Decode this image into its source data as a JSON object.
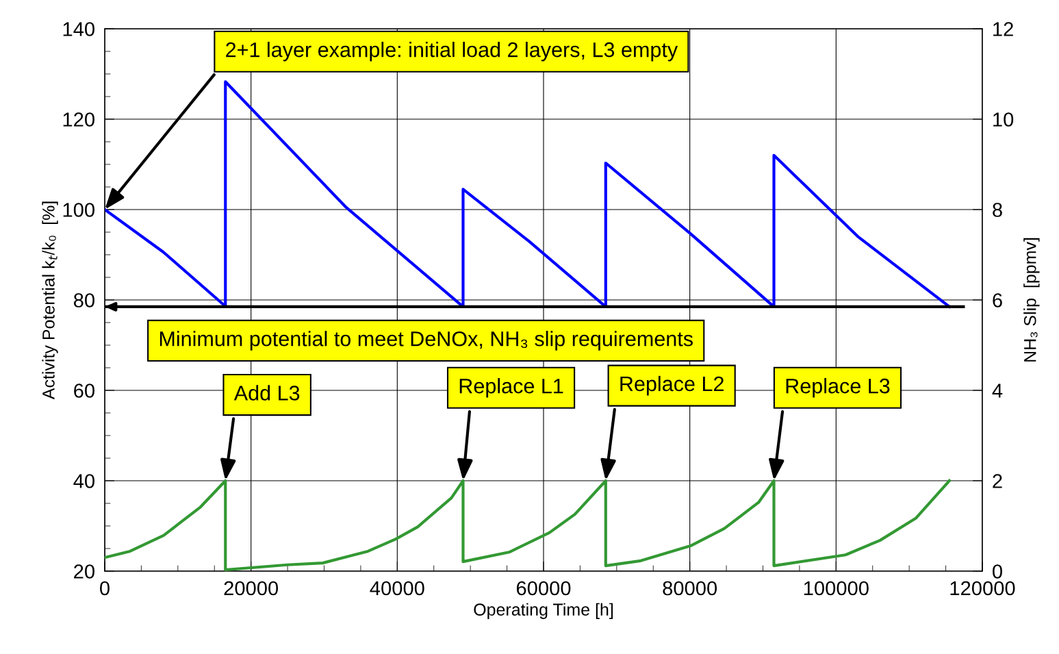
{
  "chart_data": {
    "type": "line",
    "xlabel": "Operating Time [h]",
    "ylabel": "Activity Potential k$_{t}$/k₀  [%]",
    "y2label": "NH₃ Slip  [ppmv]",
    "series": [
      {
        "color": "#0000ff",
        "x": [
          0,
          8000,
          16500,
          16500,
          33000,
          49000,
          49000,
          58000,
          68500,
          68500,
          80000,
          91500,
          91500,
          103000,
          115500
        ],
        "values": [
          100,
          90.6,
          78.6,
          128.3,
          100.5,
          78.5,
          104.5,
          93,
          78.5,
          110.3,
          94.8,
          78.5,
          112,
          94,
          78.5
        ]
      },
      {
        "color": "#339933",
        "axis": "y2",
        "x": [
          0,
          3460,
          8050,
          13100,
          16500,
          16500,
          25000,
          29800,
          36000,
          39800,
          42800,
          47400,
          49000,
          49000,
          55300,
          60800,
          64300,
          68500,
          68500,
          73300,
          80100,
          84700,
          89400,
          91500,
          91500,
          101300,
          106000,
          110900,
          115500
        ],
        "values": [
          0.3,
          0.44,
          0.79,
          1.42,
          2.0,
          0.03,
          0.14,
          0.18,
          0.44,
          0.71,
          0.98,
          1.62,
          2.0,
          0.21,
          0.42,
          0.85,
          1.26,
          2.0,
          0.12,
          0.23,
          0.56,
          0.94,
          1.52,
          2.0,
          0.12,
          0.36,
          0.68,
          1.17,
          2.0
        ]
      }
    ],
    "xlim": [
      0,
      120000
    ],
    "xticks": [
      0,
      20000,
      40000,
      60000,
      80000,
      100000,
      120000
    ],
    "ylim": [
      20,
      140
    ],
    "yticks": [
      20,
      40,
      60,
      80,
      100,
      120,
      140
    ],
    "y2lim": [
      0,
      12
    ],
    "y2ticks": [
      0,
      2,
      4,
      6,
      8,
      10,
      12
    ],
    "grid": true,
    "marker": "none",
    "line_style": "solid",
    "legend": false,
    "ref_lines": [
      {
        "axis": "y",
        "value": 78.5,
        "label": "Minimum potential to meet DeNOx, NH₃ slip requirements",
        "color": "#000000"
      }
    ],
    "annotations": [
      {
        "text": "2+1 layer example: initial load 2 layers, L3 empty",
        "x": 0,
        "y": 100
      },
      {
        "text": "Add L3",
        "x": 16500,
        "y": 40
      },
      {
        "text": "Replace L1",
        "x": 49000,
        "y": 40
      },
      {
        "text": "Replace L2",
        "x": 68500,
        "y": 40
      },
      {
        "text": "Replace L3",
        "x": 91500,
        "y": 40
      }
    ]
  }
}
